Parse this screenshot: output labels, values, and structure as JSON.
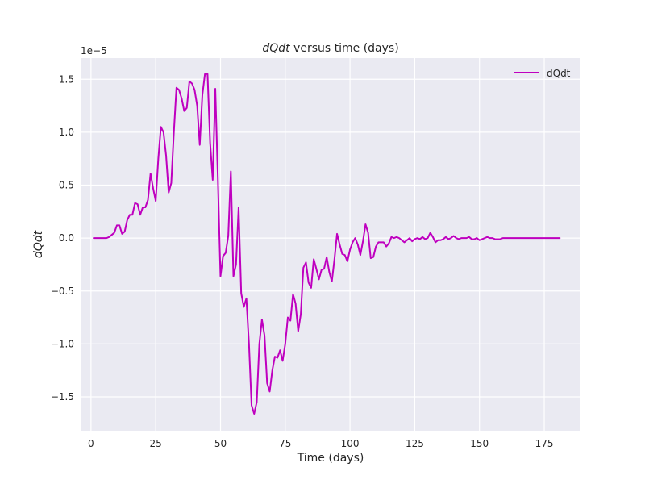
{
  "chart_data": {
    "type": "line",
    "title_italic": "dQdt",
    "title_rest": " versus time (days)",
    "xlabel": "Time (days)",
    "ylabel": "dQdt",
    "offset_text": "1e−5",
    "xlim": [
      -4,
      189
    ],
    "ylim": [
      -1.82,
      1.7
    ],
    "x_ticks": [
      0,
      25,
      50,
      75,
      100,
      125,
      150,
      175
    ],
    "y_ticks": [
      -1.5,
      -1.0,
      -0.5,
      0.0,
      0.5,
      1.0,
      1.5
    ],
    "y_tick_labels": [
      "−1.5",
      "−1.0",
      "−0.5",
      "0.0",
      "0.5",
      "1.0",
      "1.5"
    ],
    "grid": true,
    "legend_position": "top-right",
    "series": [
      {
        "name": "dQdt",
        "color": "#bf00bf",
        "points": [
          [
            1,
            0
          ],
          [
            2,
            0
          ],
          [
            3,
            0
          ],
          [
            4,
            0
          ],
          [
            5,
            0
          ],
          [
            6,
            0
          ],
          [
            7,
            0.01
          ],
          [
            8,
            0.03
          ],
          [
            9,
            0.05
          ],
          [
            10,
            0.12
          ],
          [
            11,
            0.12
          ],
          [
            12,
            0.04
          ],
          [
            13,
            0.06
          ],
          [
            14,
            0.17
          ],
          [
            15,
            0.22
          ],
          [
            16,
            0.22
          ],
          [
            17,
            0.33
          ],
          [
            18,
            0.32
          ],
          [
            19,
            0.22
          ],
          [
            20,
            0.29
          ],
          [
            21,
            0.29
          ],
          [
            22,
            0.36
          ],
          [
            23,
            0.61
          ],
          [
            24,
            0.47
          ],
          [
            25,
            0.35
          ],
          [
            26,
            0.75
          ],
          [
            27,
            1.05
          ],
          [
            28,
            1.0
          ],
          [
            29,
            0.78
          ],
          [
            30,
            0.43
          ],
          [
            31,
            0.52
          ],
          [
            32,
            1.0
          ],
          [
            33,
            1.42
          ],
          [
            34,
            1.4
          ],
          [
            35,
            1.32
          ],
          [
            36,
            1.2
          ],
          [
            37,
            1.23
          ],
          [
            38,
            1.48
          ],
          [
            39,
            1.46
          ],
          [
            40,
            1.4
          ],
          [
            41,
            1.25
          ],
          [
            42,
            0.88
          ],
          [
            43,
            1.35
          ],
          [
            44,
            1.55
          ],
          [
            45,
            1.55
          ],
          [
            46,
            0.9
          ],
          [
            47,
            0.55
          ],
          [
            48,
            1.41
          ],
          [
            49,
            0.55
          ],
          [
            50,
            -0.36
          ],
          [
            51,
            -0.17
          ],
          [
            52,
            -0.14
          ],
          [
            53,
            0.02
          ],
          [
            54,
            0.63
          ],
          [
            55,
            -0.36
          ],
          [
            56,
            -0.25
          ],
          [
            57,
            0.29
          ],
          [
            58,
            -0.52
          ],
          [
            59,
            -0.65
          ],
          [
            60,
            -0.57
          ],
          [
            61,
            -1.0
          ],
          [
            62,
            -1.58
          ],
          [
            63,
            -1.66
          ],
          [
            64,
            -1.55
          ],
          [
            65,
            -1.0
          ],
          [
            66,
            -0.77
          ],
          [
            67,
            -0.92
          ],
          [
            68,
            -1.37
          ],
          [
            69,
            -1.45
          ],
          [
            70,
            -1.25
          ],
          [
            71,
            -1.12
          ],
          [
            72,
            -1.13
          ],
          [
            73,
            -1.06
          ],
          [
            74,
            -1.16
          ],
          [
            75,
            -1.0
          ],
          [
            76,
            -0.75
          ],
          [
            77,
            -0.78
          ],
          [
            78,
            -0.53
          ],
          [
            79,
            -0.62
          ],
          [
            80,
            -0.88
          ],
          [
            81,
            -0.72
          ],
          [
            82,
            -0.28
          ],
          [
            83,
            -0.23
          ],
          [
            84,
            -0.42
          ],
          [
            85,
            -0.47
          ],
          [
            86,
            -0.2
          ],
          [
            87,
            -0.29
          ],
          [
            88,
            -0.39
          ],
          [
            89,
            -0.3
          ],
          [
            90,
            -0.29
          ],
          [
            91,
            -0.18
          ],
          [
            92,
            -0.32
          ],
          [
            93,
            -0.41
          ],
          [
            94,
            -0.2
          ],
          [
            95,
            0.04
          ],
          [
            96,
            -0.06
          ],
          [
            97,
            -0.15
          ],
          [
            98,
            -0.16
          ],
          [
            99,
            -0.22
          ],
          [
            100,
            -0.11
          ],
          [
            101,
            -0.04
          ],
          [
            102,
            0.0
          ],
          [
            103,
            -0.06
          ],
          [
            104,
            -0.16
          ],
          [
            105,
            -0.03
          ],
          [
            106,
            0.13
          ],
          [
            107,
            0.05
          ],
          [
            108,
            -0.19
          ],
          [
            109,
            -0.18
          ],
          [
            110,
            -0.08
          ],
          [
            111,
            -0.04
          ],
          [
            112,
            -0.04
          ],
          [
            113,
            -0.04
          ],
          [
            114,
            -0.08
          ],
          [
            115,
            -0.05
          ],
          [
            116,
            0.01
          ],
          [
            117,
            0.0
          ],
          [
            118,
            0.01
          ],
          [
            119,
            0.0
          ],
          [
            120,
            -0.02
          ],
          [
            121,
            -0.04
          ],
          [
            122,
            -0.02
          ],
          [
            123,
            0.0
          ],
          [
            124,
            -0.03
          ],
          [
            125,
            -0.01
          ],
          [
            126,
            0.0
          ],
          [
            127,
            -0.01
          ],
          [
            128,
            0.01
          ],
          [
            129,
            -0.01
          ],
          [
            130,
            0.0
          ],
          [
            131,
            0.05
          ],
          [
            132,
            0.01
          ],
          [
            133,
            -0.04
          ],
          [
            134,
            -0.02
          ],
          [
            135,
            -0.02
          ],
          [
            136,
            -0.01
          ],
          [
            137,
            0.01
          ],
          [
            138,
            -0.01
          ],
          [
            139,
            0.0
          ],
          [
            140,
            0.02
          ],
          [
            141,
            0.0
          ],
          [
            142,
            -0.01
          ],
          [
            143,
            0.0
          ],
          [
            144,
            0.0
          ],
          [
            145,
            0.0
          ],
          [
            146,
            0.01
          ],
          [
            147,
            -0.01
          ],
          [
            148,
            -0.01
          ],
          [
            149,
            0.0
          ],
          [
            150,
            -0.02
          ],
          [
            151,
            -0.01
          ],
          [
            152,
            0.0
          ],
          [
            153,
            0.01
          ],
          [
            154,
            0.0
          ],
          [
            155,
            0.0
          ],
          [
            156,
            -0.01
          ],
          [
            157,
            -0.01
          ],
          [
            158,
            -0.01
          ],
          [
            159,
            0.0
          ],
          [
            160,
            0.0
          ],
          [
            161,
            0
          ],
          [
            162,
            0
          ],
          [
            163,
            0
          ],
          [
            164,
            0
          ],
          [
            165,
            0
          ],
          [
            166,
            0
          ],
          [
            167,
            0
          ],
          [
            168,
            0
          ],
          [
            169,
            0
          ],
          [
            170,
            0
          ],
          [
            171,
            0
          ],
          [
            172,
            0
          ],
          [
            173,
            0
          ],
          [
            174,
            0
          ],
          [
            175,
            0
          ],
          [
            176,
            0
          ],
          [
            177,
            0
          ],
          [
            178,
            0
          ],
          [
            179,
            0
          ],
          [
            180,
            0
          ],
          [
            181,
            0
          ]
        ]
      }
    ]
  }
}
